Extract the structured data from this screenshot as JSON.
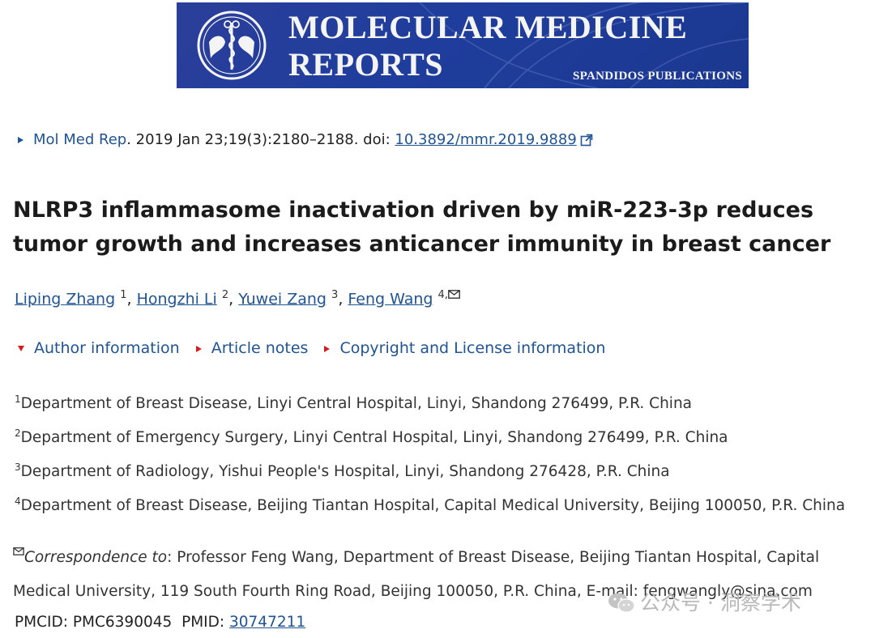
{
  "banner": {
    "title": "MOLECULAR MEDICINE\nREPORTS",
    "publisher": "SPANDIDOS PUBLICATIONS"
  },
  "citation": {
    "journal": "Mol Med Rep",
    "details": ". 2019 Jan 23;19(3):2180–2188. doi: ",
    "doi": "10.3892/mmr.2019.9889"
  },
  "article": {
    "title": "NLRP3 inflammasome inactivation driven by miR-223-3p reduces tumor growth and increases anticancer immunity in breast cancer"
  },
  "authors": [
    {
      "name": "Liping Zhang",
      "sup": "1",
      "sep": ", "
    },
    {
      "name": "Hongzhi Li",
      "sup": "2",
      "sep": ", "
    },
    {
      "name": "Yuwei Zang",
      "sup": "3",
      "sep": ", "
    },
    {
      "name": "Feng Wang",
      "sup": "4,",
      "sep": ""
    }
  ],
  "tabs": {
    "author_info": "Author information",
    "article_notes": "Article notes",
    "copyright": "Copyright and License information"
  },
  "affiliations": [
    {
      "sup": "1",
      "text": "Department of Breast Disease, Linyi Central Hospital, Linyi, Shandong 276499, P.R. China"
    },
    {
      "sup": "2",
      "text": "Department of Emergency Surgery, Linyi Central Hospital, Linyi, Shandong 276499, P.R. China"
    },
    {
      "sup": "3",
      "text": "Department of Radiology, Yishui People's Hospital, Linyi, Shandong 276428, P.R. China"
    },
    {
      "sup": "4",
      "text": "Department of Breast Disease, Beijing Tiantan Hospital, Capital Medical University, Beijing 100050, P.R. China"
    }
  ],
  "correspondence": {
    "label": "Correspondence to",
    "text": ": Professor Feng Wang, Department of Breast Disease, Beijing Tiantan Hospital, Capital Medical University, 119 South Fourth Ring Road, Beijing 100050, P.R. China, E-mail: fengwangly@sina.com"
  },
  "ids": {
    "pmcid_label": "PMCID: ",
    "pmcid": "PMC6390045",
    "pmid_label": "PMID: ",
    "pmid": "30747211"
  },
  "watermark": {
    "text": "公众号 · 洞察学术"
  },
  "icons": {
    "external_link": "external-link-icon",
    "mail": "envelope-icon",
    "wechat": "wechat-icon"
  },
  "colors": {
    "link": "#205493",
    "toggle_red": "#d81b1b",
    "banner_blue": "#1f3d9c"
  }
}
